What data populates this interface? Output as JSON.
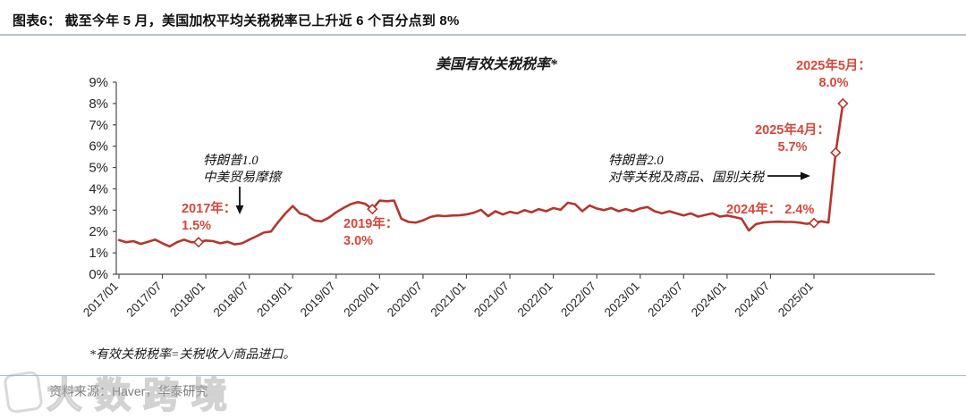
{
  "header": {
    "title": "图表6：  截至今年 5 月，美国加权平均关税税率已上升近 6 个百分点到 8%"
  },
  "chart_data": {
    "type": "line",
    "title": "美国有效关税税率*",
    "xlabel": "",
    "ylabel": "",
    "ylim": [
      0,
      9
    ],
    "grid": false,
    "y_tick_labels": [
      "0%",
      "1%",
      "2%",
      "3%",
      "4%",
      "5%",
      "6%",
      "7%",
      "8%",
      "9%"
    ],
    "x_tick_labels": [
      "2017/01",
      "2017/07",
      "2018/01",
      "2018/07",
      "2019/01",
      "2019/07",
      "2020/01",
      "2020/07",
      "2021/01",
      "2021/07",
      "2022/01",
      "2022/07",
      "2023/01",
      "2023/07",
      "2024/01",
      "2024/07",
      "2025/01"
    ],
    "x_monthly_from": "2017/01",
    "x_monthly_to": "2025/05",
    "series": [
      {
        "name": "美国有效关税税率",
        "values": [
          1.6,
          1.5,
          1.55,
          1.42,
          1.52,
          1.62,
          1.45,
          1.3,
          1.5,
          1.62,
          1.5,
          1.5,
          1.58,
          1.55,
          1.45,
          1.52,
          1.4,
          1.45,
          1.62,
          1.78,
          1.95,
          2.0,
          2.45,
          2.85,
          3.2,
          2.85,
          2.75,
          2.52,
          2.48,
          2.65,
          2.9,
          3.1,
          3.28,
          3.38,
          3.3,
          3.05,
          3.45,
          3.42,
          3.45,
          2.6,
          2.45,
          2.42,
          2.52,
          2.68,
          2.75,
          2.72,
          2.75,
          2.76,
          2.8,
          2.88,
          3.02,
          2.72,
          2.95,
          2.8,
          2.92,
          2.85,
          3.0,
          2.9,
          3.05,
          2.95,
          3.1,
          3.02,
          3.35,
          3.28,
          2.95,
          3.22,
          3.08,
          3.0,
          3.1,
          2.95,
          3.05,
          2.95,
          3.08,
          3.15,
          2.95,
          2.85,
          2.95,
          2.85,
          2.75,
          2.85,
          2.7,
          2.78,
          2.85,
          2.7,
          2.75,
          2.68,
          2.6,
          2.05,
          2.35,
          2.42,
          2.45,
          2.46,
          2.45,
          2.45,
          2.42,
          2.36,
          2.4,
          2.48,
          2.42,
          5.7,
          8.0
        ]
      }
    ],
    "marker_indices": [
      11,
      35,
      96,
      99,
      100
    ],
    "marked_points": [
      {
        "x": "2017/12",
        "value": 1.5,
        "label": "2017年：1.5%"
      },
      {
        "x": "2019/12",
        "value": 3.0,
        "label": "2019年：3.0%"
      },
      {
        "x": "2025/01",
        "value": 2.4,
        "label": "2024年：2.4%"
      },
      {
        "x": "2025/04",
        "value": 5.7,
        "label": "2025年4月：5.7%"
      },
      {
        "x": "2025/05",
        "value": 8.0,
        "label": "2025年5月：8.0%"
      }
    ]
  },
  "annotations": {
    "trump1_line1": "特朗普1.0",
    "trump1_line2": "中美贸易摩擦",
    "trump2_line1": "特朗普2.0",
    "trump2_line2": "对等关税及商品、国别关税",
    "label_2017_l1": "2017年：",
    "label_2017_l2": "1.5%",
    "label_2019_l1": "2019年：",
    "label_2019_l2": "3.0%",
    "label_2024": "2024年： 2.4%",
    "label_2025apr_l1": "2025年4月：",
    "label_2025apr_l2": "5.7%",
    "label_2025may_l1": "2025年5月：",
    "label_2025may_l2": "8.0%"
  },
  "footnote": "*有效关税税率=关税收入/商品进口。",
  "source": "资料来源：Haver，华泰研究",
  "watermark": "大数跨境",
  "colors": {
    "line": "#b4362e",
    "label_red": "#d6473c",
    "axis": "#4d4d4d",
    "tick_text": "#262626",
    "header_rule": "#b7c0cc",
    "bottom_rule": "#a9bfd2"
  }
}
